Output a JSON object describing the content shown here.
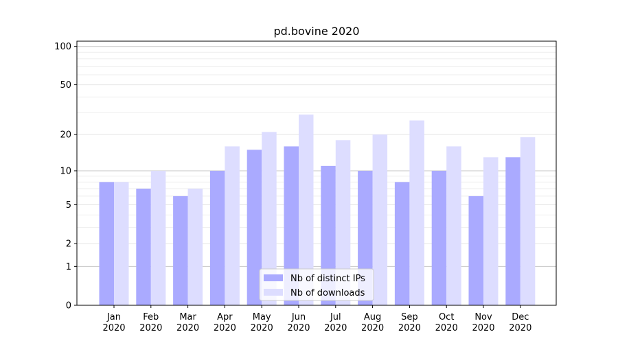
{
  "chart_data": {
    "type": "bar",
    "title": "pd.bovine 2020",
    "xlabel": "",
    "ylabel": "",
    "scale": "log1p",
    "ylim": [
      0,
      110
    ],
    "grid": "horizontal",
    "legend_position": "bottom-center",
    "categories": [
      [
        "Jan",
        "2020"
      ],
      [
        "Feb",
        "2020"
      ],
      [
        "Mar",
        "2020"
      ],
      [
        "Apr",
        "2020"
      ],
      [
        "May",
        "2020"
      ],
      [
        "Jun",
        "2020"
      ],
      [
        "Jul",
        "2020"
      ],
      [
        "Aug",
        "2020"
      ],
      [
        "Sep",
        "2020"
      ],
      [
        "Oct",
        "2020"
      ],
      [
        "Nov",
        "2020"
      ],
      [
        "Dec",
        "2020"
      ]
    ],
    "y_ticks": [
      0,
      1,
      2,
      5,
      10,
      20,
      50,
      100
    ],
    "series": [
      {
        "name": "Nb of distinct IPs",
        "color": "#aaaaff",
        "values": [
          8,
          7,
          6,
          10,
          15,
          16,
          11,
          10,
          8,
          10,
          6,
          13
        ]
      },
      {
        "name": "Nb of downloads",
        "color": "#ddddff",
        "values": [
          8,
          10,
          7,
          16,
          21,
          29,
          18,
          20,
          26,
          16,
          13,
          19
        ]
      }
    ]
  }
}
